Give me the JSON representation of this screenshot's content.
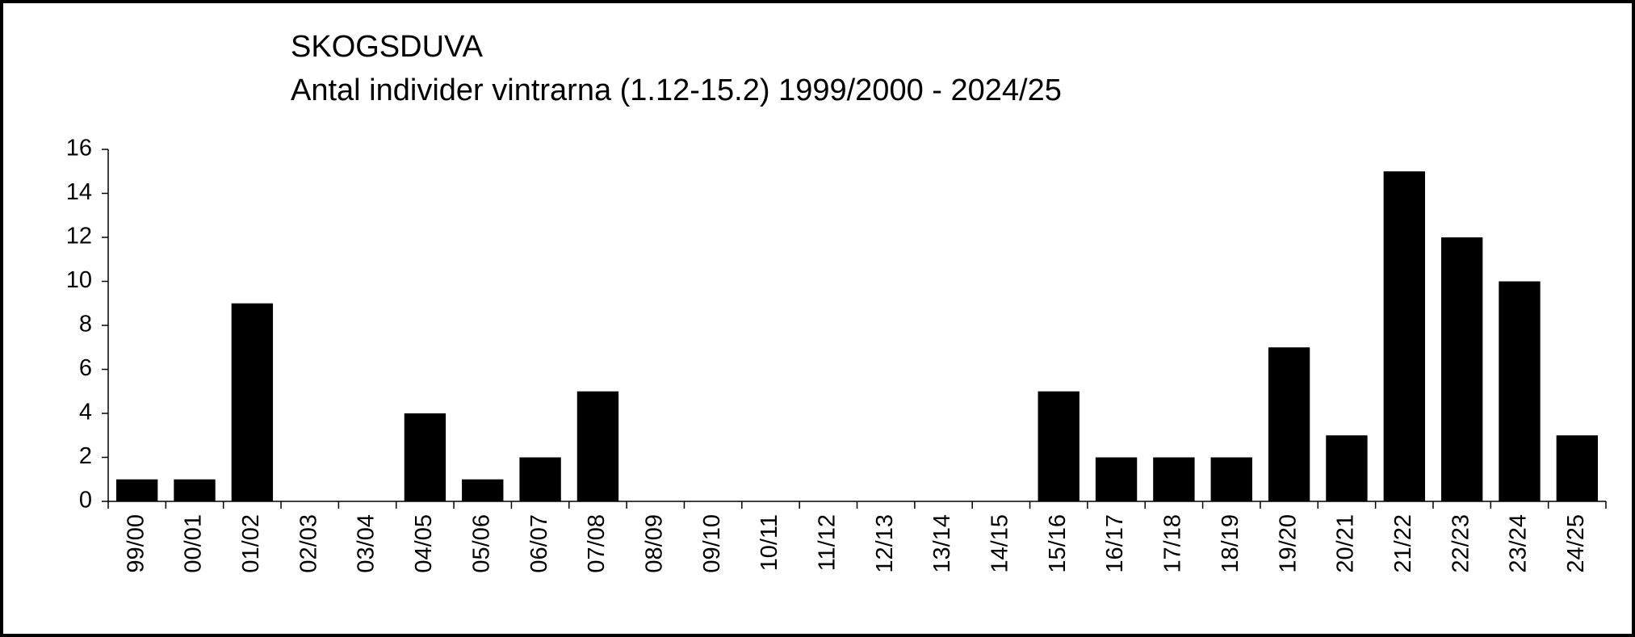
{
  "chart_data": {
    "type": "bar",
    "title": "SKOGSDUVA",
    "subtitle": "Antal individer vintrarna (1.12-15.2) 1999/2000 - 2024/25",
    "categories": [
      "99/00",
      "00/01",
      "01/02",
      "02/03",
      "03/04",
      "04/05",
      "05/06",
      "06/07",
      "07/08",
      "08/09",
      "09/10",
      "10/11",
      "11/12",
      "12/13",
      "13/14",
      "14/15",
      "15/16",
      "16/17",
      "17/18",
      "18/19",
      "19/20",
      "20/21",
      "21/22",
      "22/23",
      "23/24",
      "24/25"
    ],
    "values": [
      1,
      1,
      9,
      0,
      0,
      4,
      1,
      2,
      5,
      0,
      0,
      0,
      0,
      0,
      0,
      0,
      5,
      2,
      2,
      2,
      7,
      3,
      15,
      12,
      10,
      3
    ],
    "color": "#000000",
    "ylim": [
      0,
      16
    ],
    "yticks": [
      0,
      2,
      4,
      6,
      8,
      10,
      12,
      14,
      16
    ],
    "grid": false
  }
}
